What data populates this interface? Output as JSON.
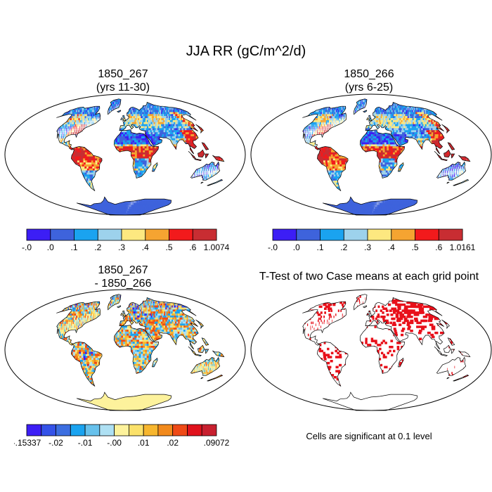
{
  "main_title": "JJA RR (gC/m^2/d)",
  "panels": [
    {
      "title_line1": "1850_267",
      "title_line2": "(yrs 11-30)"
    },
    {
      "title_line1": "1850_266",
      "title_line2": "(yrs 6-25)"
    },
    {
      "title_line1": "1850_267",
      "title_line2": "- 1850_266"
    },
    {
      "title_line1": "T-Test of two Case means at each grid point",
      "title_line2": ""
    }
  ],
  "note": "Cells are significant at 0.1 level",
  "colors": {
    "abs": [
      "#3c1ef5",
      "#3e63dc",
      "#1aa3f0",
      "#9dd2ec",
      "#fde880",
      "#f5a431",
      "#f21a1c",
      "#c82d32"
    ],
    "diff": [
      "#3c1ef5",
      "#3452e8",
      "#3c6ee0",
      "#1aa3f0",
      "#67c1ec",
      "#aee0f3",
      "#fdf29c",
      "#fbe16a",
      "#f7b62e",
      "#f28a1c",
      "#ef4a16",
      "#e0121c",
      "#c8202f"
    ],
    "significant": "#e8101a"
  },
  "chart_data": [
    {
      "type": "heatmap",
      "title": "1850_267 (yrs 11-30)",
      "colorbar_labels": [
        "-.0",
        ".0",
        ".1",
        ".2",
        ".3",
        ".4",
        ".5",
        ".6",
        "1.0074"
      ],
      "range": [
        -0.0,
        1.0074
      ]
    },
    {
      "type": "heatmap",
      "title": "1850_266 (yrs 6-25)",
      "colorbar_labels": [
        "-.0",
        ".0",
        ".1",
        ".2",
        ".3",
        ".4",
        ".5",
        ".6",
        "1.0161"
      ],
      "range": [
        -0.0,
        1.0161
      ]
    },
    {
      "type": "heatmap",
      "title": "1850_267 - 1850_266",
      "colorbar_labels": [
        "-.15337",
        "-.02",
        "-.01",
        "-.00",
        ".01",
        ".02",
        ".09072"
      ],
      "range": [
        -0.15337,
        0.09072
      ]
    },
    {
      "type": "heatmap",
      "title": "T-Test of two Case means at each grid point",
      "note": "Cells are significant at 0.1 level"
    }
  ]
}
